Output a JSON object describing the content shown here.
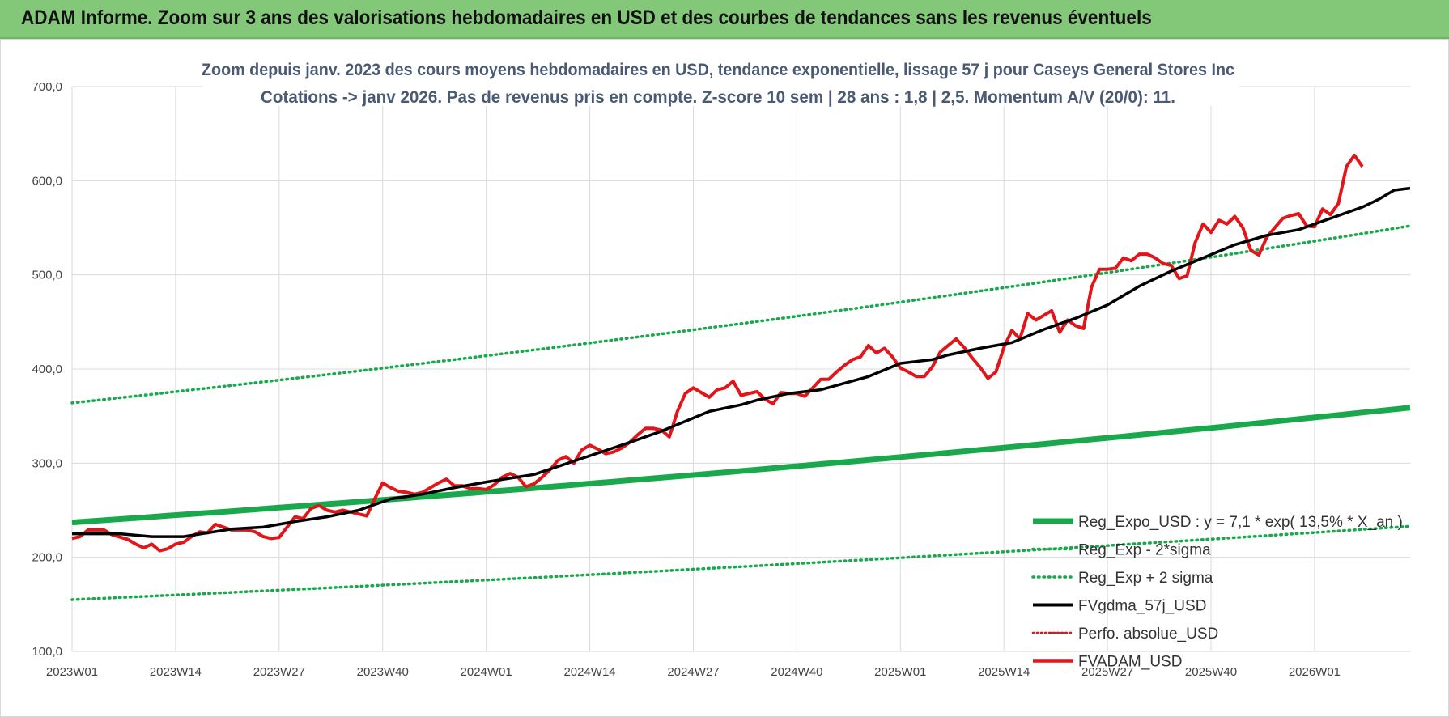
{
  "banner": {
    "title": "ADAM Informe. Zoom sur 3 ans des valorisations hebdomadaires en USD et des courbes de tendances sans les revenus éventuels"
  },
  "colors": {
    "banner_bg": "#82c878",
    "trend": "#1aa84c",
    "fvgdma": "#000000",
    "perfo": "#e0161b",
    "fvadam": "#e0161b",
    "grid": "#dadada"
  },
  "chart_data": {
    "type": "line",
    "title_line1": "Zoom depuis janv. 2023 des cours moyens hebdomadaires en USD, tendance exponentielle, lissage 57 j pour Caseys General Stores Inc",
    "title_line2": "Cotations -> janv 2026. Pas de revenus pris en compte. Z-score 10 sem  | 28 ans : 1,8 | 2,5. Momentum A/V (20/0): 11.",
    "xlabel": "",
    "ylabel": "",
    "ylim": [
      100,
      700
    ],
    "yticks": [
      "100,0",
      "200,0",
      "300,0",
      "400,0",
      "500,0",
      "600,0",
      "700,0"
    ],
    "x_count": 160,
    "xticks": [
      {
        "i": 0,
        "label": "2023W01"
      },
      {
        "i": 13,
        "label": "2023W14"
      },
      {
        "i": 26,
        "label": "2023W27"
      },
      {
        "i": 39,
        "label": "2023W40"
      },
      {
        "i": 52,
        "label": "2024W01"
      },
      {
        "i": 65,
        "label": "2024W14"
      },
      {
        "i": 78,
        "label": "2024W27"
      },
      {
        "i": 91,
        "label": "2024W40"
      },
      {
        "i": 104,
        "label": "2025W01"
      },
      {
        "i": 117,
        "label": "2025W14"
      },
      {
        "i": 130,
        "label": "2025W27"
      },
      {
        "i": 143,
        "label": "2025W40"
      },
      {
        "i": 156,
        "label": "2026W01"
      }
    ],
    "grid": true,
    "legend_position": "bottom-right",
    "series": [
      {
        "name": "Reg_Expo_USD : y = 7,1 * exp( 13,5% *  X_an )",
        "style": "thick",
        "start": 237,
        "end": 359
      },
      {
        "name": "Reg_Exp - 2*sigma",
        "style": "dotted",
        "start": 155,
        "end": 233
      },
      {
        "name": "Reg_Exp + 2 sigma",
        "style": "dotted",
        "start": 364,
        "end": 552
      },
      {
        "name": "FVgdma_57j_USD",
        "style": "solid",
        "points": [
          [
            0,
            225
          ],
          [
            6,
            225
          ],
          [
            10,
            222
          ],
          [
            14,
            222
          ],
          [
            20,
            230
          ],
          [
            24,
            232
          ],
          [
            28,
            238
          ],
          [
            32,
            243
          ],
          [
            36,
            250
          ],
          [
            40,
            262
          ],
          [
            44,
            267
          ],
          [
            48,
            274
          ],
          [
            52,
            280
          ],
          [
            58,
            288
          ],
          [
            64,
            305
          ],
          [
            70,
            322
          ],
          [
            74,
            334
          ],
          [
            78,
            348
          ],
          [
            80,
            355
          ],
          [
            84,
            362
          ],
          [
            86,
            367
          ],
          [
            90,
            374
          ],
          [
            94,
            378
          ],
          [
            100,
            392
          ],
          [
            104,
            406
          ],
          [
            108,
            410
          ],
          [
            110,
            415
          ],
          [
            114,
            422
          ],
          [
            118,
            428
          ],
          [
            122,
            442
          ],
          [
            126,
            454
          ],
          [
            130,
            468
          ],
          [
            134,
            488
          ],
          [
            138,
            504
          ],
          [
            142,
            518
          ],
          [
            146,
            532
          ],
          [
            150,
            542
          ],
          [
            154,
            548
          ],
          [
            158,
            560
          ],
          [
            162,
            572
          ],
          [
            164,
            580
          ],
          [
            166,
            590
          ],
          [
            168,
            592
          ]
        ]
      },
      {
        "name": "Perfo. absolue_USD",
        "style": "dotted",
        "points": []
      },
      {
        "name": "FVADAM_USD",
        "style": "solid",
        "points": [
          [
            0,
            220
          ],
          [
            1,
            222
          ],
          [
            2,
            229
          ],
          [
            4,
            229
          ],
          [
            5,
            224
          ],
          [
            7,
            219
          ],
          [
            8,
            214
          ],
          [
            9,
            210
          ],
          [
            10,
            214
          ],
          [
            11,
            207
          ],
          [
            12,
            209
          ],
          [
            13,
            214
          ],
          [
            14,
            216
          ],
          [
            15,
            222
          ],
          [
            16,
            227
          ],
          [
            17,
            226
          ],
          [
            18,
            235
          ],
          [
            19,
            232
          ],
          [
            20,
            229
          ],
          [
            22,
            229
          ],
          [
            23,
            227
          ],
          [
            24,
            222
          ],
          [
            25,
            220
          ],
          [
            26,
            221
          ],
          [
            27,
            232
          ],
          [
            28,
            243
          ],
          [
            29,
            241
          ],
          [
            30,
            252
          ],
          [
            31,
            255
          ],
          [
            32,
            250
          ],
          [
            33,
            248
          ],
          [
            34,
            250
          ],
          [
            35,
            248
          ],
          [
            36,
            246
          ],
          [
            37,
            244
          ],
          [
            38,
            262
          ],
          [
            39,
            279
          ],
          [
            40,
            274
          ],
          [
            41,
            270
          ],
          [
            42,
            269
          ],
          [
            43,
            267
          ],
          [
            44,
            269
          ],
          [
            45,
            274
          ],
          [
            46,
            279
          ],
          [
            47,
            283
          ],
          [
            48,
            276
          ],
          [
            49,
            276
          ],
          [
            50,
            273
          ],
          [
            51,
            273
          ],
          [
            52,
            272
          ],
          [
            53,
            277
          ],
          [
            54,
            285
          ],
          [
            55,
            289
          ],
          [
            56,
            285
          ],
          [
            57,
            275
          ],
          [
            58,
            278
          ],
          [
            59,
            285
          ],
          [
            60,
            293
          ],
          [
            61,
            303
          ],
          [
            62,
            307
          ],
          [
            63,
            300
          ],
          [
            64,
            314
          ],
          [
            65,
            319
          ],
          [
            66,
            315
          ],
          [
            67,
            310
          ],
          [
            68,
            312
          ],
          [
            69,
            316
          ],
          [
            70,
            322
          ],
          [
            71,
            330
          ],
          [
            72,
            337
          ],
          [
            73,
            337
          ],
          [
            74,
            335
          ],
          [
            75,
            328
          ],
          [
            76,
            355
          ],
          [
            77,
            374
          ],
          [
            78,
            380
          ],
          [
            79,
            375
          ],
          [
            80,
            370
          ],
          [
            81,
            378
          ],
          [
            82,
            380
          ],
          [
            83,
            387
          ],
          [
            84,
            372
          ],
          [
            85,
            374
          ],
          [
            86,
            376
          ],
          [
            87,
            368
          ],
          [
            88,
            363
          ],
          [
            89,
            375
          ],
          [
            90,
            374
          ],
          [
            91,
            374
          ],
          [
            92,
            371
          ],
          [
            93,
            380
          ],
          [
            94,
            389
          ],
          [
            95,
            389
          ],
          [
            96,
            397
          ],
          [
            97,
            404
          ],
          [
            98,
            410
          ],
          [
            99,
            413
          ],
          [
            100,
            425
          ],
          [
            101,
            417
          ],
          [
            102,
            422
          ],
          [
            103,
            413
          ],
          [
            104,
            401
          ],
          [
            105,
            397
          ],
          [
            106,
            392
          ],
          [
            107,
            392
          ],
          [
            108,
            402
          ],
          [
            109,
            418
          ],
          [
            110,
            425
          ],
          [
            111,
            432
          ],
          [
            112,
            423
          ],
          [
            113,
            412
          ],
          [
            114,
            402
          ],
          [
            115,
            390
          ],
          [
            116,
            397
          ],
          [
            117,
            423
          ],
          [
            118,
            441
          ],
          [
            119,
            432
          ],
          [
            120,
            459
          ],
          [
            121,
            452
          ],
          [
            122,
            457
          ],
          [
            123,
            462
          ],
          [
            124,
            439
          ],
          [
            125,
            452
          ],
          [
            126,
            446
          ],
          [
            127,
            443
          ],
          [
            128,
            487
          ],
          [
            129,
            506
          ],
          [
            130,
            506
          ],
          [
            131,
            507
          ],
          [
            132,
            518
          ],
          [
            133,
            515
          ],
          [
            134,
            522
          ],
          [
            135,
            522
          ],
          [
            136,
            518
          ],
          [
            137,
            512
          ],
          [
            138,
            510
          ],
          [
            139,
            496
          ],
          [
            140,
            499
          ],
          [
            141,
            534
          ],
          [
            142,
            554
          ],
          [
            143,
            545
          ],
          [
            144,
            558
          ],
          [
            145,
            554
          ],
          [
            146,
            562
          ],
          [
            147,
            550
          ],
          [
            148,
            526
          ],
          [
            149,
            521
          ],
          [
            150,
            540
          ],
          [
            151,
            550
          ],
          [
            152,
            560
          ],
          [
            153,
            563
          ],
          [
            154,
            565
          ],
          [
            155,
            552
          ],
          [
            156,
            551
          ],
          [
            157,
            570
          ],
          [
            158,
            564
          ],
          [
            159,
            576
          ],
          [
            160,
            615
          ],
          [
            161,
            627
          ],
          [
            162,
            615
          ]
        ]
      }
    ]
  }
}
